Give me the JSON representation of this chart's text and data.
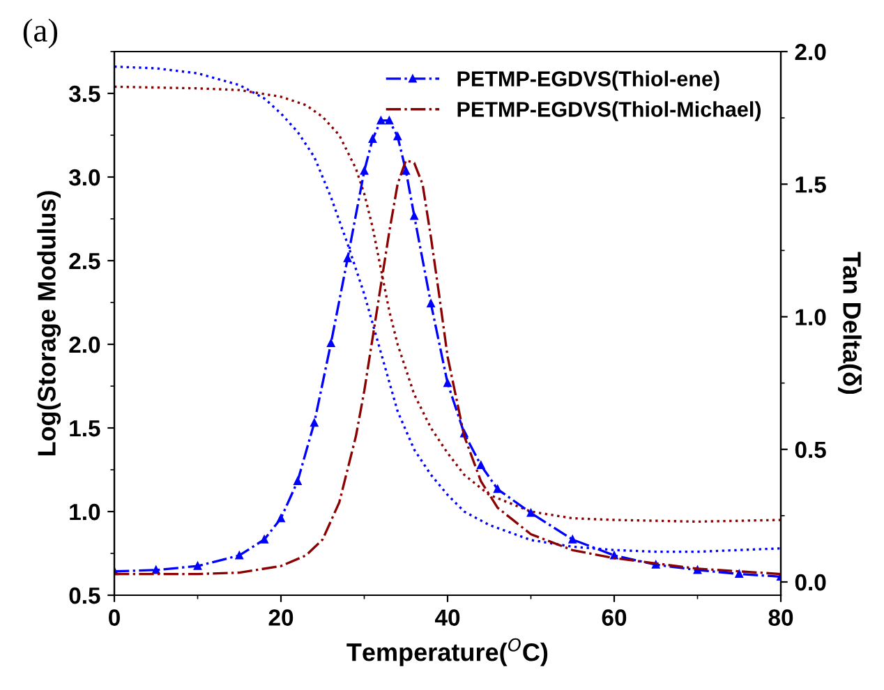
{
  "chart_data": {
    "type": "line",
    "xlabel": "Temperature($^{O}$C)",
    "ylabel": "Log(Storage Modulus)",
    "y2label": "Tan Delta(δ)",
    "annotations": [
      "(a)"
    ],
    "xlim": [
      0,
      80
    ],
    "xticks": [
      0,
      20,
      40,
      60,
      80
    ],
    "ylim": [
      0.5,
      3.75
    ],
    "yticks": [
      0.5,
      {
        "value": 1,
        "label": "1.0"
      },
      1.5,
      {
        "value": 2,
        "label": "2.0"
      },
      2.5,
      {
        "value": 3,
        "label": "3.0"
      },
      3.5
    ],
    "y2lim": [
      -0.05,
      2.0
    ],
    "y2ticks": [
      {
        "value": 0,
        "label": "0.0"
      },
      0.5,
      {
        "value": 1,
        "label": "1.0"
      },
      1.5,
      {
        "value": 2,
        "label": "2.0"
      }
    ],
    "legend": "top right",
    "grid": false,
    "series": [
      {
        "color": "#0000ff",
        "axis": "y",
        "line_style": "dotted",
        "marker": "none",
        "x": [
          0,
          5,
          10,
          15,
          18,
          20,
          22,
          24,
          26,
          28,
          30,
          32,
          34,
          36,
          38,
          40,
          42,
          45,
          50,
          55,
          60,
          65,
          70,
          75,
          80
        ],
        "values": [
          3.66,
          3.65,
          3.62,
          3.55,
          3.47,
          3.38,
          3.27,
          3.12,
          2.88,
          2.6,
          2.3,
          1.95,
          1.6,
          1.37,
          1.22,
          1.1,
          1.0,
          0.92,
          0.83,
          0.79,
          0.77,
          0.76,
          0.76,
          0.77,
          0.78
        ]
      },
      {
        "color": "#8b0000",
        "axis": "y",
        "line_style": "dotted",
        "marker": "none",
        "x": [
          0,
          10,
          15,
          20,
          23,
          25,
          27,
          29,
          30,
          31,
          32,
          33,
          34,
          35,
          36,
          38,
          40,
          42,
          45,
          50,
          55,
          60,
          70,
          80
        ],
        "values": [
          3.54,
          3.53,
          3.52,
          3.48,
          3.43,
          3.36,
          3.25,
          3.05,
          2.9,
          2.7,
          2.45,
          2.2,
          2.0,
          1.85,
          1.7,
          1.5,
          1.35,
          1.22,
          1.1,
          1.0,
          0.96,
          0.95,
          0.94,
          0.95
        ]
      },
      {
        "name": "PETMP-EGDVS(Thiol-ene)",
        "color": "#0000ff",
        "axis": "y2",
        "line_style": "dashdot",
        "marker": "triangle",
        "x": [
          0,
          5,
          10,
          15,
          18,
          20,
          22,
          24,
          26,
          28,
          30,
          31,
          32,
          33,
          34,
          35,
          36,
          38,
          40,
          42,
          44,
          46,
          50,
          55,
          60,
          65,
          70,
          75,
          80
        ],
        "values": [
          0.04,
          0.045,
          0.06,
          0.1,
          0.16,
          0.24,
          0.38,
          0.6,
          0.9,
          1.22,
          1.55,
          1.67,
          1.74,
          1.74,
          1.68,
          1.55,
          1.38,
          1.05,
          0.75,
          0.56,
          0.44,
          0.35,
          0.26,
          0.16,
          0.1,
          0.065,
          0.045,
          0.03,
          0.02
        ]
      },
      {
        "name": "PETMP-EGDVS(Thiol-Michael)",
        "color": "#8b0000",
        "axis": "y2",
        "line_style": "dashdot",
        "marker": "none",
        "x": [
          0,
          10,
          15,
          20,
          23,
          25,
          27,
          29,
          30,
          31,
          32,
          33,
          34,
          35,
          36,
          37,
          38,
          39,
          40,
          42,
          44,
          46,
          50,
          55,
          60,
          70,
          80
        ],
        "values": [
          0.03,
          0.03,
          0.035,
          0.06,
          0.1,
          0.16,
          0.3,
          0.55,
          0.72,
          0.92,
          1.12,
          1.32,
          1.5,
          1.59,
          1.58,
          1.5,
          1.3,
          1.08,
          0.85,
          0.55,
          0.38,
          0.28,
          0.18,
          0.12,
          0.09,
          0.05,
          0.03
        ]
      }
    ]
  }
}
